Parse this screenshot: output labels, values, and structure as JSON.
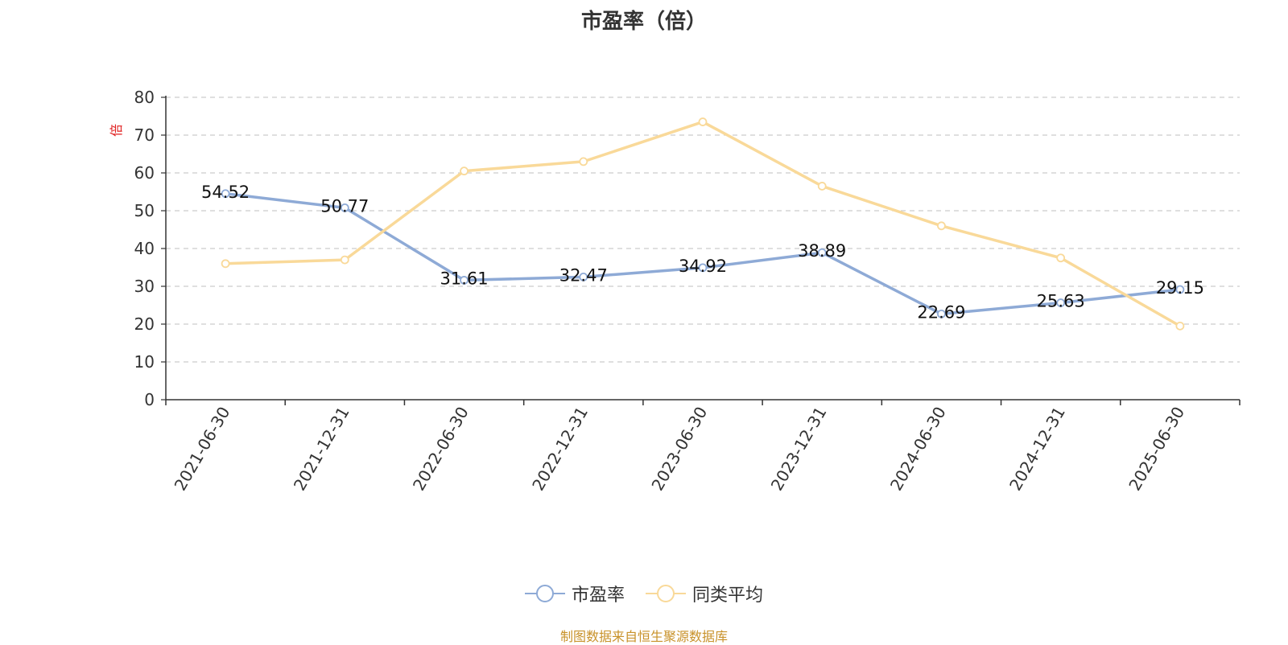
{
  "chart_data": {
    "type": "line",
    "title": "市盈率（倍）",
    "ylabel": "倍",
    "ylim": [
      0,
      80
    ],
    "yticks": [
      0,
      10,
      20,
      30,
      40,
      50,
      60,
      70,
      80
    ],
    "categories": [
      "2021-06-30",
      "2021-12-31",
      "2022-06-30",
      "2022-12-31",
      "2023-06-30",
      "2023-12-31",
      "2024-06-30",
      "2024-12-31",
      "2025-06-30"
    ],
    "grid": true,
    "legend_position": "bottom-center",
    "series": [
      {
        "name": "市盈率",
        "color": "#8eaad6",
        "values": [
          54.52,
          50.77,
          31.61,
          32.47,
          34.92,
          38.89,
          22.69,
          25.63,
          29.15
        ],
        "labels": [
          "54.52",
          "50.77",
          "31.61",
          "32.47",
          "34.92",
          "38.89",
          "22.69",
          "25.63",
          "29.15"
        ]
      },
      {
        "name": "同类平均",
        "color": "#f9d999",
        "values": [
          36.0,
          37.0,
          60.5,
          63.0,
          73.5,
          56.5,
          46.0,
          37.5,
          19.5
        ]
      }
    ]
  },
  "footer": {
    "source": "制图数据来自恒生聚源数据库"
  }
}
